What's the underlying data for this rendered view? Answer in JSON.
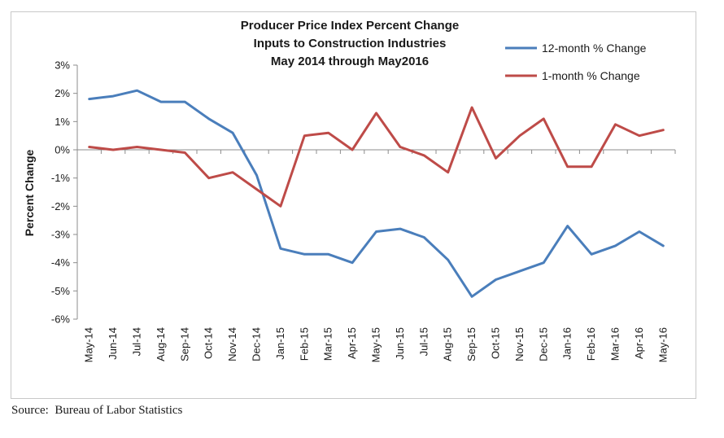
{
  "chart_data": {
    "type": "line",
    "title": [
      "Producer Price Index Percent Change",
      "Inputs to Construction Industries",
      "May 2014 through May2016"
    ],
    "xlabel": "",
    "ylabel": "Percent Change",
    "ylim": [
      -6,
      3
    ],
    "y_ticks": [
      3,
      2,
      1,
      0,
      -1,
      -2,
      -3,
      -4,
      -5,
      -6
    ],
    "y_tick_labels": [
      "3%",
      "2%",
      "1%",
      "0%",
      "-1%",
      "-2%",
      "-3%",
      "-4%",
      "-5%",
      "-6%"
    ],
    "grid": false,
    "legend_position": "top-right",
    "categories": [
      "May-14",
      "Jun-14",
      "Jul-14",
      "Aug-14",
      "Sep-14",
      "Oct-14",
      "Nov-14",
      "Dec-14",
      "Jan-15",
      "Feb-15",
      "Mar-15",
      "Apr-15",
      "May-15",
      "Jun-15",
      "Jul-15",
      "Aug-15",
      "Sep-15",
      "Oct-15",
      "Nov-15",
      "Dec-15",
      "Jan-16",
      "Feb-16",
      "Mar-16",
      "Apr-16",
      "May-16"
    ],
    "series": [
      {
        "name": "12-month % Change",
        "color": "#4a7ebb",
        "values": [
          1.8,
          1.9,
          2.1,
          1.7,
          1.7,
          1.1,
          0.6,
          -0.9,
          -3.5,
          -3.7,
          -3.7,
          -4.0,
          -2.9,
          -2.8,
          -3.1,
          -3.9,
          -5.2,
          -4.6,
          -4.3,
          -4.0,
          -2.7,
          -3.7,
          -3.4,
          -2.9,
          -3.4
        ]
      },
      {
        "name": "1-month % Change",
        "color": "#be4b48",
        "values": [
          0.1,
          0.0,
          0.1,
          0.0,
          -0.1,
          -1.0,
          -0.8,
          -1.4,
          -2.0,
          0.5,
          0.6,
          0.0,
          1.3,
          0.1,
          -0.2,
          -0.8,
          1.5,
          -0.3,
          0.5,
          1.1,
          -0.6,
          -0.6,
          0.9,
          0.5,
          0.7
        ]
      }
    ]
  },
  "footer": {
    "source": "Source:  Bureau of Labor Statistics"
  }
}
